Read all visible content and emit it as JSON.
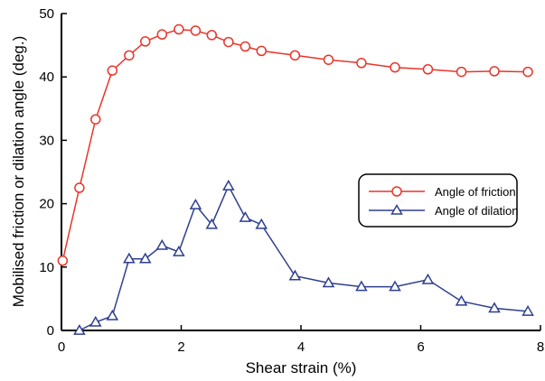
{
  "chart_data": {
    "type": "line",
    "xlabel": "Shear strain (%)",
    "ylabel": "Mobilised friction or dilation angle (deg.)",
    "xlim": [
      0,
      8
    ],
    "ylim": [
      0,
      50
    ],
    "xticks": [
      0,
      2,
      4,
      6,
      8
    ],
    "yticks": [
      0,
      10,
      20,
      30,
      40,
      50
    ],
    "grid": false,
    "legend_position": "center-right",
    "series": [
      {
        "name": "Angle of friction",
        "color": "#e8352a",
        "marker": "circle",
        "points": [
          [
            0.02,
            11.0
          ],
          [
            0.3,
            22.5
          ],
          [
            0.57,
            33.3
          ],
          [
            0.85,
            41.0
          ],
          [
            1.13,
            43.4
          ],
          [
            1.4,
            45.6
          ],
          [
            1.68,
            46.7
          ],
          [
            1.96,
            47.5
          ],
          [
            2.24,
            47.3
          ],
          [
            2.51,
            46.6
          ],
          [
            2.79,
            45.5
          ],
          [
            3.07,
            44.8
          ],
          [
            3.34,
            44.1
          ],
          [
            3.9,
            43.4
          ],
          [
            4.46,
            42.7
          ],
          [
            5.01,
            42.2
          ],
          [
            5.57,
            41.5
          ],
          [
            6.12,
            41.2
          ],
          [
            6.68,
            40.8
          ],
          [
            7.23,
            40.9
          ],
          [
            7.79,
            40.8
          ]
        ]
      },
      {
        "name": "Angle of dilation",
        "color": "#2e3f8f",
        "marker": "triangle",
        "points": [
          [
            0.3,
            0.0
          ],
          [
            0.57,
            1.3
          ],
          [
            0.85,
            2.3
          ],
          [
            1.13,
            11.3
          ],
          [
            1.4,
            11.3
          ],
          [
            1.68,
            13.4
          ],
          [
            1.96,
            12.4
          ],
          [
            2.24,
            19.8
          ],
          [
            2.51,
            16.7
          ],
          [
            2.79,
            22.8
          ],
          [
            3.07,
            17.8
          ],
          [
            3.34,
            16.7
          ],
          [
            3.9,
            8.6
          ],
          [
            4.46,
            7.5
          ],
          [
            5.01,
            6.9
          ],
          [
            5.57,
            6.9
          ],
          [
            6.12,
            8.0
          ],
          [
            6.68,
            4.6
          ],
          [
            7.23,
            3.5
          ],
          [
            7.79,
            3.0
          ]
        ]
      }
    ]
  }
}
